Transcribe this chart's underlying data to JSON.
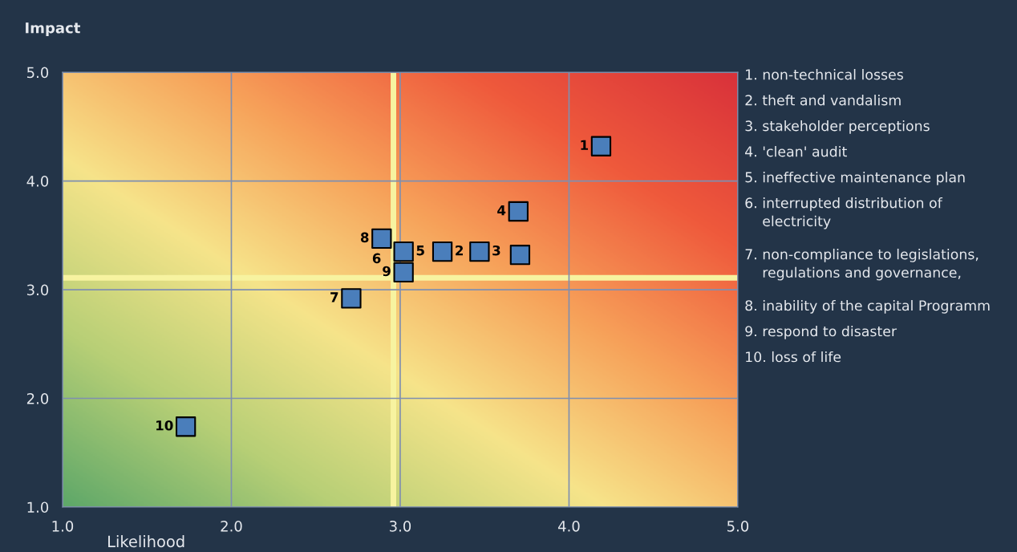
{
  "chart_data": {
    "type": "scatter",
    "ylabel": "Impact",
    "xlabel": "Likelihood",
    "xlim": [
      1.0,
      5.0
    ],
    "ylim": [
      1.0,
      5.0
    ],
    "xticks": [
      {
        "value": 1,
        "label": "1.0"
      },
      {
        "value": 2,
        "label": "2.0"
      },
      {
        "value": 3,
        "label": "3.0"
      },
      {
        "value": 4,
        "label": "4.0"
      },
      {
        "value": 5,
        "label": "5.0"
      }
    ],
    "yticks": [
      {
        "value": 1,
        "label": "1.0"
      },
      {
        "value": 2,
        "label": "2.0"
      },
      {
        "value": 3,
        "label": "3.0"
      },
      {
        "value": 4,
        "label": "4.0"
      },
      {
        "value": 5,
        "label": "5.0"
      }
    ],
    "grid": true,
    "marker": "square",
    "series": [
      {
        "color": "#4a7ebb",
        "x": [
          4.19,
          3.7,
          2.89,
          3.02,
          3.02,
          3.25,
          3.47,
          3.71,
          2.71,
          1.73
        ],
        "values": [
          4.32,
          3.72,
          3.47,
          3.35,
          3.16,
          3.35,
          3.35,
          3.32,
          2.92,
          1.74
        ]
      }
    ],
    "ref_lines": [
      {
        "axis": "x",
        "value": 2.96,
        "color": "#f7f3a0"
      },
      {
        "axis": "y",
        "value": 3.11,
        "color": "#f7f3a0"
      }
    ],
    "annotations": [
      {
        "text": "1",
        "x": 4.19,
        "y": 4.32
      },
      {
        "text": "4",
        "x": 3.7,
        "y": 3.72
      },
      {
        "text": "8",
        "x": 2.89,
        "y": 3.47
      },
      {
        "text": "6",
        "x": 3.02,
        "y": 3.35
      },
      {
        "text": "5",
        "x": 3.02,
        "y": 3.35
      },
      {
        "text": "9",
        "x": 3.02,
        "y": 3.16
      },
      {
        "text": "2",
        "x": 3.25,
        "y": 3.35
      },
      {
        "text": "3",
        "x": 3.47,
        "y": 3.35
      },
      {
        "text": "7",
        "x": 2.71,
        "y": 2.92
      },
      {
        "text": "10",
        "x": 1.73,
        "y": 1.74
      },
      "1. non-technical losses",
      "2. theft and vandalism",
      "3. stakeholder perceptions",
      "4. 'clean' audit",
      "5. ineffective maintenance plan",
      "6. interrupted distribution of\n    electricity",
      "7. non-compliance to legislations,\n    regulations and governance,",
      "8. inability of the capital Programm",
      "9. respond to disaster",
      "10. loss of life"
    ]
  }
}
